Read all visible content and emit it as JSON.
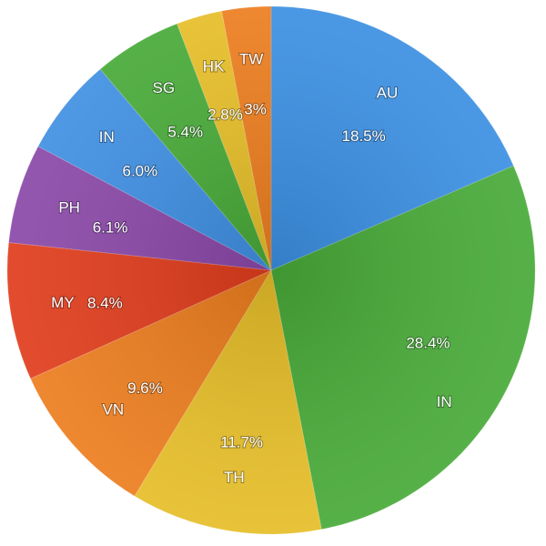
{
  "chart_data": {
    "type": "pie",
    "categories": [
      "AU",
      "IN",
      "TH",
      "VN",
      "MY",
      "PH",
      "IN",
      "SG",
      "HK",
      "TW"
    ],
    "values": [
      18.5,
      28.4,
      11.7,
      9.6,
      8.4,
      6.1,
      6.0,
      5.4,
      2.8,
      3
    ],
    "value_labels": [
      "18.5%",
      "28.4%",
      "11.7%",
      "9.6%",
      "8.4%",
      "6.1%",
      "6.0%",
      "5.4%",
      "2.8%",
      "3%"
    ],
    "colors": [
      "#3b8fe2",
      "#48aa38",
      "#e6be28",
      "#ec7d1e",
      "#e03c1c",
      "#8a48a8",
      "#3f8fe2",
      "#48aa38",
      "#e6be28",
      "#ec7d1e"
    ]
  }
}
